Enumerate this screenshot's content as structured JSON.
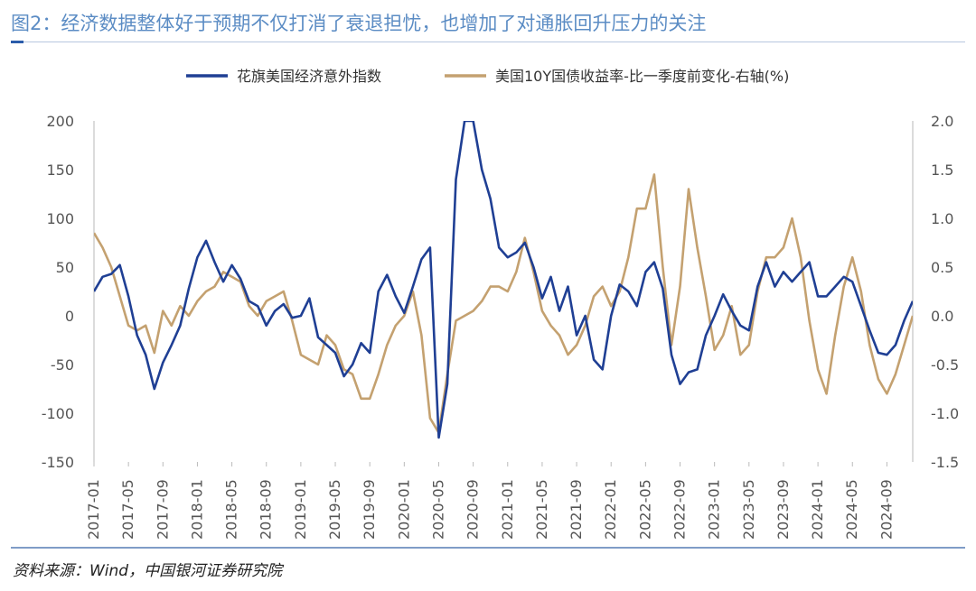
{
  "title": "图2：经济数据整体好于预期不仅打消了衰退担忧，也增加了对通胀回升压力的关注",
  "source": "资料来源：Wind，中国银河证券研究院",
  "colors": {
    "series1": "#1f3f94",
    "series2": "#c4a170",
    "title": "#5b8cc4",
    "axis": "#cfcfcf"
  },
  "chart_data": {
    "type": "line",
    "x_ticks": [
      "2017-01",
      "2017-05",
      "2017-09",
      "2018-01",
      "2018-05",
      "2018-09",
      "2019-01",
      "2019-05",
      "2019-09",
      "2020-01",
      "2020-05",
      "2020-09",
      "2021-01",
      "2021-05",
      "2021-09",
      "2022-01",
      "2022-05",
      "2022-09",
      "2023-01",
      "2023-05",
      "2023-09",
      "2024-01",
      "2024-05",
      "2024-09"
    ],
    "y_left_ticks": [
      "200",
      "150",
      "100",
      "50",
      "0",
      "-50",
      "-100",
      "-150"
    ],
    "y_right_ticks": [
      "2.0",
      "1.5",
      "1.0",
      "0.5",
      "0.0",
      "-0.5",
      "-1.0",
      "-1.5"
    ],
    "y_left_range": [
      -150,
      200
    ],
    "y_right_range": [
      -1.5,
      2.0
    ],
    "grid": false,
    "legend_position": "top",
    "series": [
      {
        "name": "花旗美国经济意外指数",
        "axis": "left",
        "points": [
          [
            "2017-01",
            25
          ],
          [
            "2017-02",
            40
          ],
          [
            "2017-03",
            43
          ],
          [
            "2017-04",
            52
          ],
          [
            "2017-05",
            20
          ],
          [
            "2017-06",
            -20
          ],
          [
            "2017-07",
            -40
          ],
          [
            "2017-08",
            -75
          ],
          [
            "2017-09",
            -48
          ],
          [
            "2017-10",
            -30
          ],
          [
            "2017-11",
            -10
          ],
          [
            "2017-12",
            28
          ],
          [
            "2018-01",
            60
          ],
          [
            "2018-02",
            77
          ],
          [
            "2018-03",
            55
          ],
          [
            "2018-04",
            35
          ],
          [
            "2018-05",
            52
          ],
          [
            "2018-06",
            38
          ],
          [
            "2018-07",
            15
          ],
          [
            "2018-08",
            10
          ],
          [
            "2018-09",
            -10
          ],
          [
            "2018-10",
            5
          ],
          [
            "2018-11",
            12
          ],
          [
            "2018-12",
            -2
          ],
          [
            "2019-01",
            0
          ],
          [
            "2019-02",
            18
          ],
          [
            "2019-03",
            -22
          ],
          [
            "2019-04",
            -30
          ],
          [
            "2019-05",
            -38
          ],
          [
            "2019-06",
            -62
          ],
          [
            "2019-07",
            -50
          ],
          [
            "2019-08",
            -28
          ],
          [
            "2019-09",
            -38
          ],
          [
            "2019-10",
            25
          ],
          [
            "2019-11",
            42
          ],
          [
            "2019-12",
            20
          ],
          [
            "2020-01",
            3
          ],
          [
            "2020-02",
            30
          ],
          [
            "2020-03",
            58
          ],
          [
            "2020-04",
            70
          ],
          [
            "2020-05",
            -125
          ],
          [
            "2020-06",
            -70
          ],
          [
            "2020-07",
            140
          ],
          [
            "2020-08",
            200
          ],
          [
            "2020-09",
            200
          ],
          [
            "2020-10",
            150
          ],
          [
            "2020-11",
            120
          ],
          [
            "2020-12",
            70
          ],
          [
            "2021-01",
            60
          ],
          [
            "2021-02",
            65
          ],
          [
            "2021-03",
            75
          ],
          [
            "2021-04",
            50
          ],
          [
            "2021-05",
            18
          ],
          [
            "2021-06",
            40
          ],
          [
            "2021-07",
            5
          ],
          [
            "2021-08",
            30
          ],
          [
            "2021-09",
            -20
          ],
          [
            "2021-10",
            0
          ],
          [
            "2021-11",
            -45
          ],
          [
            "2021-12",
            -55
          ],
          [
            "2022-01",
            0
          ],
          [
            "2022-02",
            32
          ],
          [
            "2022-03",
            25
          ],
          [
            "2022-04",
            10
          ],
          [
            "2022-05",
            45
          ],
          [
            "2022-06",
            55
          ],
          [
            "2022-07",
            28
          ],
          [
            "2022-08",
            -40
          ],
          [
            "2022-09",
            -70
          ],
          [
            "2022-10",
            -58
          ],
          [
            "2022-11",
            -55
          ],
          [
            "2022-12",
            -20
          ],
          [
            "2023-01",
            0
          ],
          [
            "2023-02",
            22
          ],
          [
            "2023-03",
            5
          ],
          [
            "2023-04",
            -10
          ],
          [
            "2023-05",
            -15
          ],
          [
            "2023-06",
            30
          ],
          [
            "2023-07",
            55
          ],
          [
            "2023-08",
            30
          ],
          [
            "2023-09",
            45
          ],
          [
            "2023-10",
            35
          ],
          [
            "2023-11",
            45
          ],
          [
            "2023-12",
            55
          ],
          [
            "2024-01",
            20
          ],
          [
            "2024-02",
            20
          ],
          [
            "2024-03",
            30
          ],
          [
            "2024-04",
            40
          ],
          [
            "2024-05",
            35
          ],
          [
            "2024-06",
            10
          ],
          [
            "2024-07",
            -15
          ],
          [
            "2024-08",
            -38
          ],
          [
            "2024-09",
            -40
          ],
          [
            "2024-10",
            -30
          ],
          [
            "2024-11",
            -5
          ],
          [
            "2024-12",
            15
          ]
        ]
      },
      {
        "name": "美国10Y国债收益率-比一季度前变化-右轴(%)",
        "axis": "right",
        "points": [
          [
            "2017-01",
            0.85
          ],
          [
            "2017-02",
            0.7
          ],
          [
            "2017-03",
            0.5
          ],
          [
            "2017-04",
            0.2
          ],
          [
            "2017-05",
            -0.1
          ],
          [
            "2017-06",
            -0.15
          ],
          [
            "2017-07",
            -0.1
          ],
          [
            "2017-08",
            -0.38
          ],
          [
            "2017-09",
            0.05
          ],
          [
            "2017-10",
            -0.1
          ],
          [
            "2017-11",
            0.1
          ],
          [
            "2017-12",
            0.0
          ],
          [
            "2018-01",
            0.15
          ],
          [
            "2018-02",
            0.25
          ],
          [
            "2018-03",
            0.3
          ],
          [
            "2018-04",
            0.45
          ],
          [
            "2018-05",
            0.4
          ],
          [
            "2018-06",
            0.35
          ],
          [
            "2018-07",
            0.1
          ],
          [
            "2018-08",
            0.0
          ],
          [
            "2018-09",
            0.15
          ],
          [
            "2018-10",
            0.2
          ],
          [
            "2018-11",
            0.25
          ],
          [
            "2018-12",
            -0.05
          ],
          [
            "2019-01",
            -0.4
          ],
          [
            "2019-02",
            -0.45
          ],
          [
            "2019-03",
            -0.5
          ],
          [
            "2019-04",
            -0.2
          ],
          [
            "2019-05",
            -0.3
          ],
          [
            "2019-06",
            -0.55
          ],
          [
            "2019-07",
            -0.6
          ],
          [
            "2019-08",
            -0.85
          ],
          [
            "2019-09",
            -0.85
          ],
          [
            "2019-10",
            -0.6
          ],
          [
            "2019-11",
            -0.3
          ],
          [
            "2019-12",
            -0.1
          ],
          [
            "2020-01",
            0.0
          ],
          [
            "2020-02",
            0.25
          ],
          [
            "2020-03",
            -0.2
          ],
          [
            "2020-04",
            -1.05
          ],
          [
            "2020-05",
            -1.2
          ],
          [
            "2020-06",
            -0.6
          ],
          [
            "2020-07",
            -0.05
          ],
          [
            "2020-08",
            0.0
          ],
          [
            "2020-09",
            0.05
          ],
          [
            "2020-10",
            0.15
          ],
          [
            "2020-11",
            0.3
          ],
          [
            "2020-12",
            0.3
          ],
          [
            "2021-01",
            0.25
          ],
          [
            "2021-02",
            0.45
          ],
          [
            "2021-03",
            0.8
          ],
          [
            "2021-04",
            0.45
          ],
          [
            "2021-05",
            0.05
          ],
          [
            "2021-06",
            -0.1
          ],
          [
            "2021-07",
            -0.2
          ],
          [
            "2021-08",
            -0.4
          ],
          [
            "2021-09",
            -0.3
          ],
          [
            "2021-10",
            -0.1
          ],
          [
            "2021-11",
            0.2
          ],
          [
            "2021-12",
            0.3
          ],
          [
            "2022-01",
            0.1
          ],
          [
            "2022-02",
            0.25
          ],
          [
            "2022-03",
            0.6
          ],
          [
            "2022-04",
            1.1
          ],
          [
            "2022-05",
            1.1
          ],
          [
            "2022-06",
            1.45
          ],
          [
            "2022-07",
            0.5
          ],
          [
            "2022-08",
            -0.3
          ],
          [
            "2022-09",
            0.3
          ],
          [
            "2022-10",
            1.3
          ],
          [
            "2022-11",
            0.7
          ],
          [
            "2022-12",
            0.2
          ],
          [
            "2023-01",
            -0.35
          ],
          [
            "2023-02",
            -0.2
          ],
          [
            "2023-03",
            0.1
          ],
          [
            "2023-04",
            -0.4
          ],
          [
            "2023-05",
            -0.3
          ],
          [
            "2023-06",
            0.25
          ],
          [
            "2023-07",
            0.6
          ],
          [
            "2023-08",
            0.6
          ],
          [
            "2023-09",
            0.7
          ],
          [
            "2023-10",
            1.0
          ],
          [
            "2023-11",
            0.6
          ],
          [
            "2023-12",
            -0.05
          ],
          [
            "2024-01",
            -0.55
          ],
          [
            "2024-02",
            -0.8
          ],
          [
            "2024-03",
            -0.2
          ],
          [
            "2024-04",
            0.3
          ],
          [
            "2024-05",
            0.6
          ],
          [
            "2024-06",
            0.25
          ],
          [
            "2024-07",
            -0.3
          ],
          [
            "2024-08",
            -0.65
          ],
          [
            "2024-09",
            -0.8
          ],
          [
            "2024-10",
            -0.6
          ],
          [
            "2024-11",
            -0.3
          ],
          [
            "2024-12",
            0.0
          ]
        ]
      }
    ]
  }
}
